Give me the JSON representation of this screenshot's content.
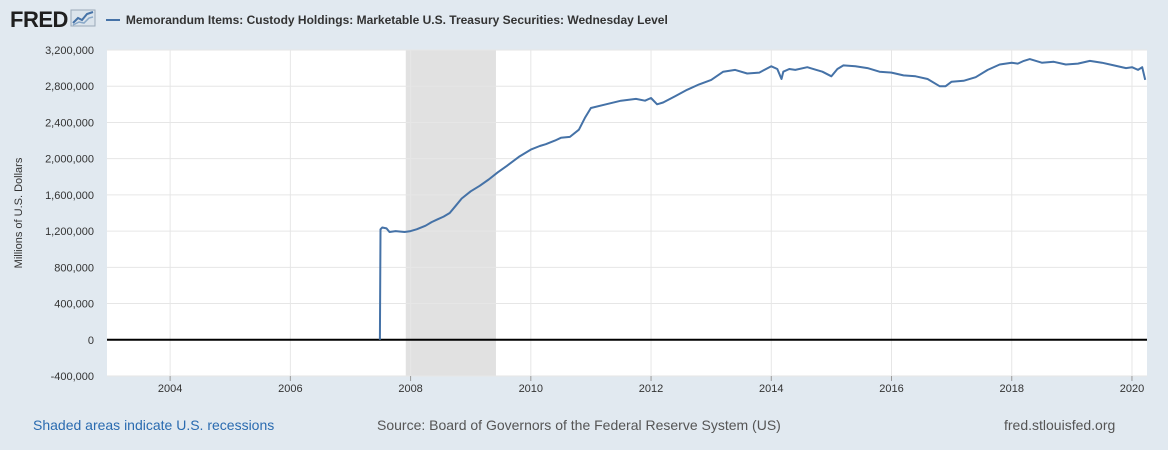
{
  "header": {
    "logo_text": "FRED",
    "series_title": "Memorandum Items: Custody Holdings: Marketable U.S. Treasury Securities: Wednesday Level"
  },
  "footer": {
    "recession_note": "Shaded areas indicate U.S. recessions",
    "source": "Source: Board of Governors of the Federal Reserve System (US)",
    "site": "fred.stlouisfed.org"
  },
  "colors": {
    "line": "#4572a7",
    "recession": "#e1e1e1",
    "grid": "#e6e6e6",
    "zero_line": "#000000",
    "background": "#e1e9f0"
  },
  "chart_data": {
    "type": "line",
    "title": "Memorandum Items: Custody Holdings: Marketable U.S. Treasury Securities: Wednesday Level",
    "xlabel": "",
    "ylabel": "Millions of U.S. Dollars",
    "xlim": [
      2002.95,
      2020.25
    ],
    "ylim": [
      -400000,
      3200000
    ],
    "x_ticks": [
      2004,
      2006,
      2008,
      2010,
      2012,
      2014,
      2016,
      2018,
      2020
    ],
    "y_ticks": [
      -400000,
      0,
      400000,
      800000,
      1200000,
      1600000,
      2000000,
      2400000,
      2800000,
      3200000
    ],
    "y_tick_labels": [
      "-400,000",
      "0",
      "400,000",
      "800,000",
      "1,200,000",
      "1,600,000",
      "2,000,000",
      "2,400,000",
      "2,800,000",
      "3,200,000"
    ],
    "grid": true,
    "recessions": [
      {
        "start": 2007.92,
        "end": 2009.42
      }
    ],
    "series": [
      {
        "name": "Memorandum Items: Custody Holdings: Marketable U.S. Treasury Securities: Wednesday Level",
        "x": [
          2007.49,
          2007.5,
          2007.53,
          2007.6,
          2007.65,
          2007.75,
          2007.9,
          2008.0,
          2008.1,
          2008.25,
          2008.35,
          2008.45,
          2008.55,
          2008.65,
          2008.75,
          2008.85,
          2009.0,
          2009.15,
          2009.3,
          2009.45,
          2009.6,
          2009.8,
          2010.0,
          2010.15,
          2010.25,
          2010.4,
          2010.5,
          2010.65,
          2010.8,
          2010.9,
          2011.0,
          2011.25,
          2011.5,
          2011.75,
          2011.9,
          2012.0,
          2012.1,
          2012.2,
          2012.4,
          2012.6,
          2012.8,
          2013.0,
          2013.2,
          2013.4,
          2013.6,
          2013.8,
          2014.0,
          2014.1,
          2014.17,
          2014.2,
          2014.3,
          2014.4,
          2014.6,
          2014.75,
          2014.85,
          2015.0,
          2015.1,
          2015.2,
          2015.4,
          2015.6,
          2015.8,
          2016.0,
          2016.2,
          2016.4,
          2016.6,
          2016.8,
          2016.9,
          2017.0,
          2017.2,
          2017.4,
          2017.6,
          2017.8,
          2018.0,
          2018.1,
          2018.2,
          2018.3,
          2018.5,
          2018.7,
          2018.9,
          2019.1,
          2019.3,
          2019.5,
          2019.7,
          2019.9,
          2020.0,
          2020.1,
          2020.17,
          2020.22
        ],
        "values": [
          0,
          1220000,
          1240000,
          1230000,
          1190000,
          1200000,
          1190000,
          1200000,
          1220000,
          1260000,
          1300000,
          1330000,
          1360000,
          1400000,
          1480000,
          1560000,
          1640000,
          1700000,
          1770000,
          1850000,
          1920000,
          2020000,
          2100000,
          2140000,
          2160000,
          2200000,
          2230000,
          2240000,
          2320000,
          2450000,
          2560000,
          2600000,
          2640000,
          2660000,
          2640000,
          2670000,
          2600000,
          2620000,
          2690000,
          2760000,
          2820000,
          2870000,
          2960000,
          2980000,
          2940000,
          2950000,
          3020000,
          2990000,
          2880000,
          2960000,
          2990000,
          2980000,
          3010000,
          2980000,
          2960000,
          2910000,
          2990000,
          3030000,
          3020000,
          3000000,
          2960000,
          2950000,
          2920000,
          2910000,
          2880000,
          2800000,
          2800000,
          2850000,
          2860000,
          2900000,
          2980000,
          3040000,
          3060000,
          3050000,
          3080000,
          3100000,
          3060000,
          3070000,
          3040000,
          3050000,
          3080000,
          3060000,
          3030000,
          3000000,
          3010000,
          2980000,
          3010000,
          2870000
        ]
      }
    ]
  }
}
